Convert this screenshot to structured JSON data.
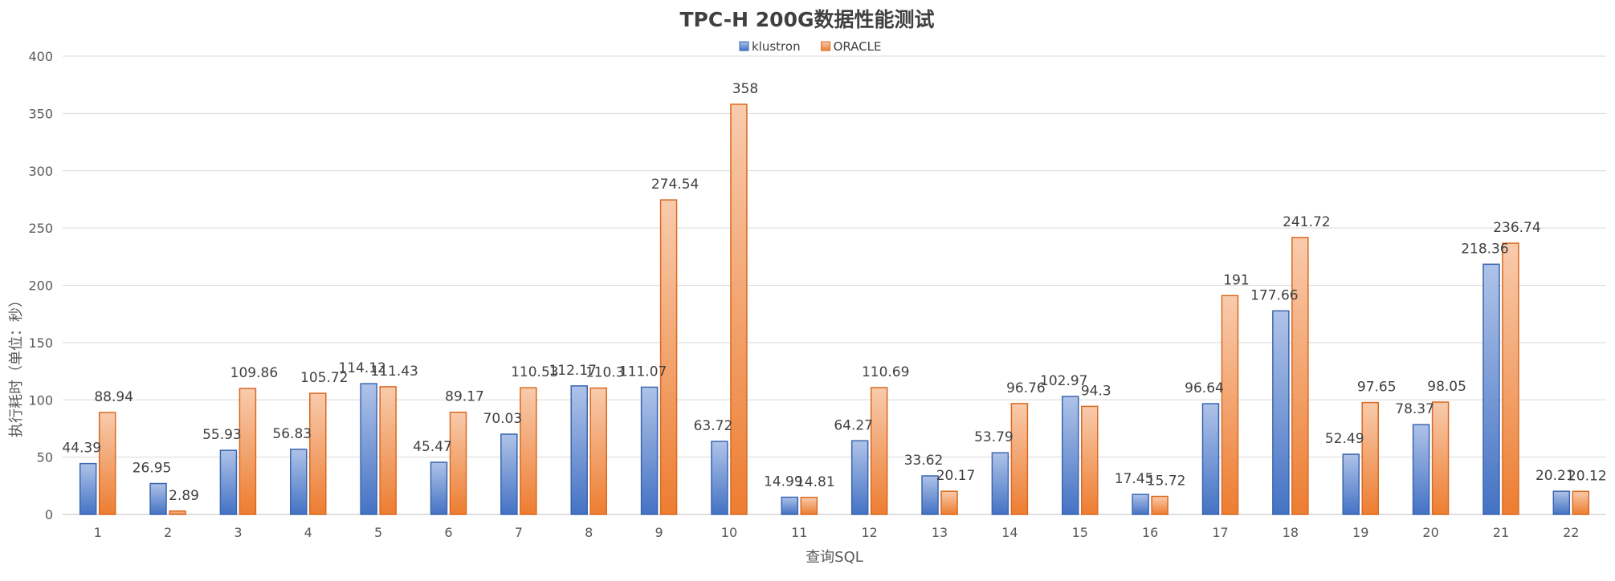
{
  "chart_data": {
    "type": "bar",
    "title": "TPC-H 200G数据性能测试",
    "xlabel": "查询SQL",
    "ylabel": "执行耗时（单位：秒）",
    "ylim": [
      0,
      400
    ],
    "yticks": [
      0,
      50,
      100,
      150,
      200,
      250,
      300,
      350,
      400
    ],
    "grid": true,
    "legend_position": "top-center",
    "categories": [
      "1",
      "2",
      "3",
      "4",
      "5",
      "6",
      "7",
      "8",
      "9",
      "10",
      "11",
      "12",
      "13",
      "14",
      "15",
      "16",
      "17",
      "18",
      "19",
      "20",
      "21",
      "22"
    ],
    "series": [
      {
        "name": "klustron",
        "color": "#4472C4",
        "values": [
          44.39,
          26.95,
          55.93,
          56.83,
          114.12,
          45.47,
          70.03,
          112.17,
          111.07,
          63.72,
          14.99,
          64.27,
          33.62,
          53.79,
          102.97,
          17.45,
          96.64,
          177.66,
          52.49,
          78.37,
          218.36,
          20.21
        ]
      },
      {
        "name": "ORACLE",
        "color": "#ED7D31",
        "values": [
          88.94,
          2.89,
          109.86,
          105.72,
          111.43,
          89.17,
          110.53,
          110.3,
          274.54,
          358,
          14.81,
          110.69,
          20.17,
          96.76,
          94.3,
          15.72,
          191,
          241.72,
          97.65,
          98.05,
          236.74,
          20.12
        ]
      }
    ]
  }
}
